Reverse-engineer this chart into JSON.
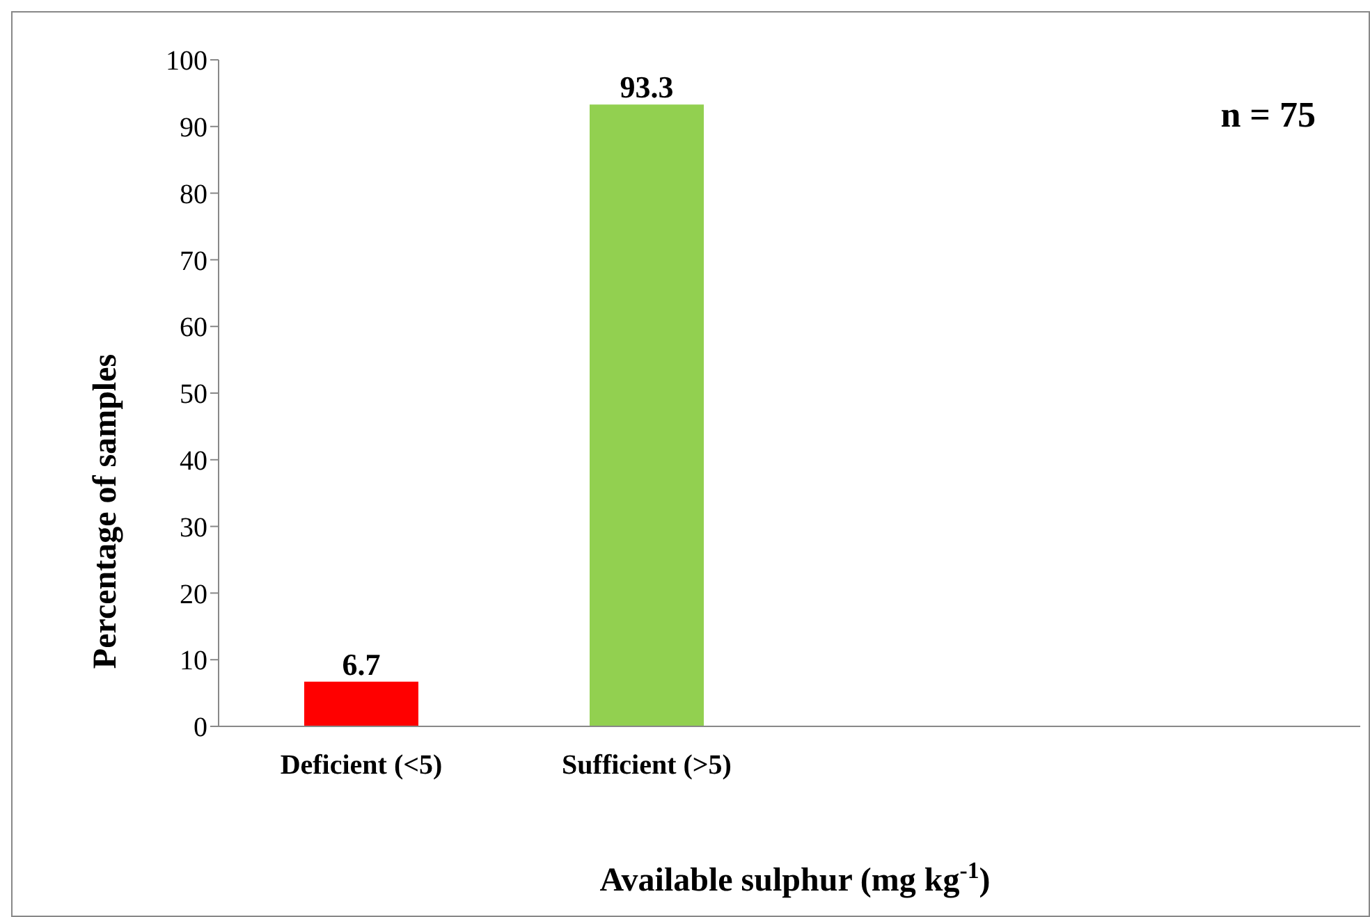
{
  "chart_data": {
    "type": "bar",
    "xlabel": "Available sulphur (mg kg$^{-1}$)",
    "ylabel": "Percentage of samples",
    "categories": [
      "Deficient (<5)",
      "Sufficient (>5)",
      null,
      null
    ],
    "values": [
      6.7,
      93.3,
      null,
      null
    ],
    "colors": [
      "#ff0000",
      "#92d050",
      null,
      null
    ],
    "ylim": [
      0,
      100
    ],
    "yticks": [
      0,
      10,
      20,
      30,
      40,
      50,
      60,
      70,
      80,
      90,
      100
    ],
    "data_labels": true,
    "grid": false,
    "annotations": [
      "n = 75"
    ]
  }
}
